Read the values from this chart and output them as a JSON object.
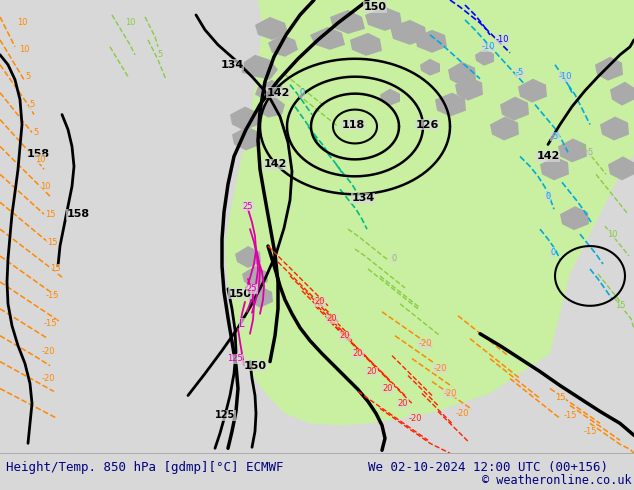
{
  "title_left": "Height/Temp. 850 hPa [gdmp][°C] ECMWF",
  "title_right": "We 02-10-2024 12:00 UTC (00+156)",
  "copyright": "© weatheronline.co.uk",
  "bg_color": "#d8d8d8",
  "map_bg": "#d8d8d8",
  "bottom_bar_color": "#ffffff",
  "bottom_text_color": "#000080",
  "copyright_color": "#000080",
  "fig_width": 6.34,
  "fig_height": 4.9,
  "dpi": 100,
  "green_fill_color": "#c8f0a0",
  "gray_fill_color": "#aaaaaa",
  "black_color": "#000000",
  "cyan_color": "#00aadd",
  "blue_color": "#0000ff",
  "teal_color": "#00bb88",
  "lime_color": "#88cc44",
  "orange_color": "#ff8800",
  "red_color": "#ff2200",
  "magenta_color": "#dd00aa",
  "pink_color": "#ff44aa"
}
